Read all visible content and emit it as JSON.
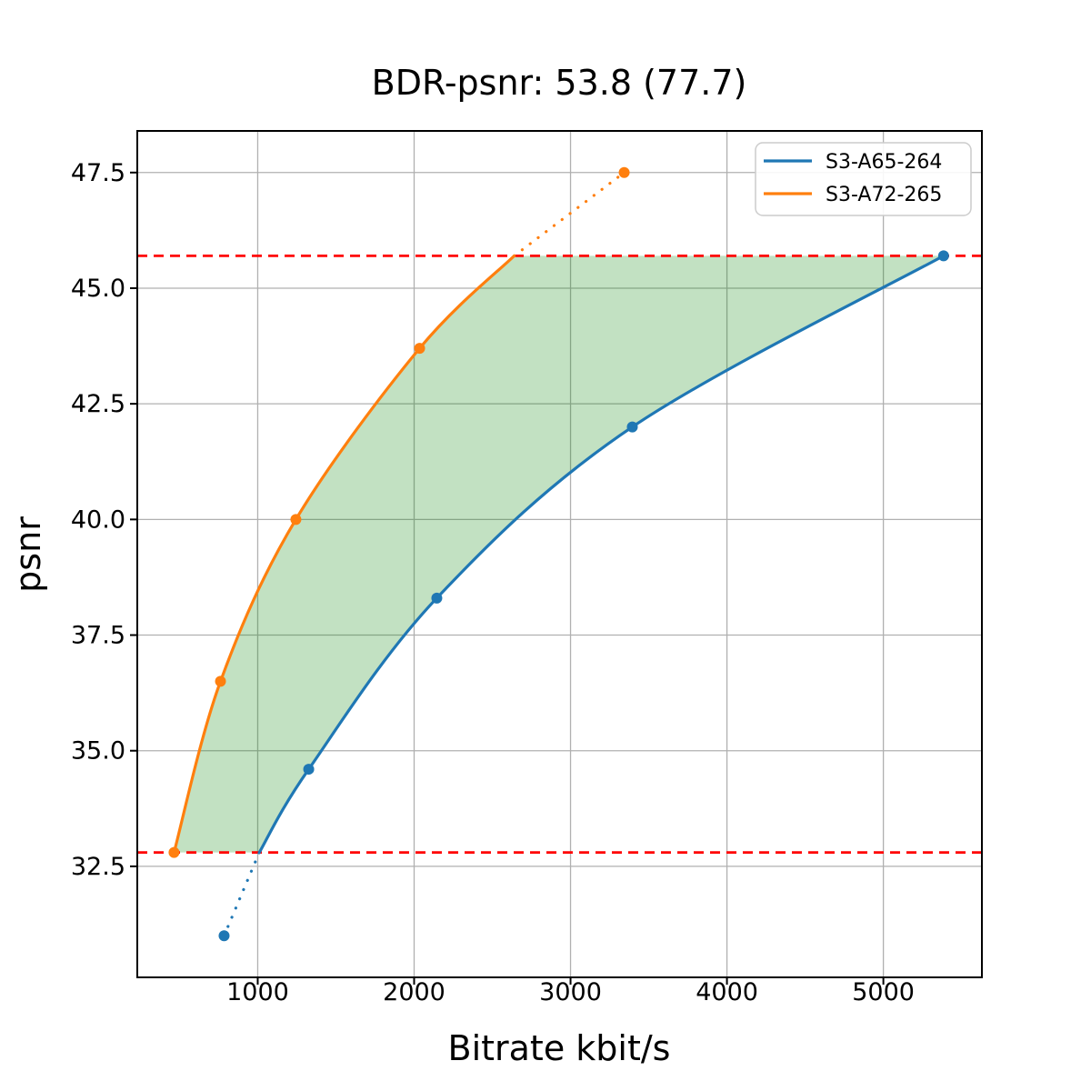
{
  "chart_data": {
    "type": "line",
    "title": "BDR-psnr: 53.8 (77.7)",
    "xlabel": "Bitrate kbit/s",
    "ylabel": "psnr",
    "xlim": [
      230,
      5630
    ],
    "ylim": [
      30.1,
      48.4
    ],
    "grid": true,
    "grid_color": "#b0b0b0",
    "x_ticks": [
      1000,
      2000,
      3000,
      4000,
      5000
    ],
    "x_tick_labels": [
      "1000",
      "2000",
      "3000",
      "4000",
      "5000"
    ],
    "y_ticks": [
      32.5,
      35.0,
      37.5,
      40.0,
      42.5,
      45.0,
      47.5
    ],
    "y_tick_labels": [
      "32.5",
      "35.0",
      "37.5",
      "40.0",
      "42.5",
      "45.0",
      "47.5"
    ],
    "legend_position": "upper right",
    "series": [
      {
        "name": "S3-A65-264",
        "color": "#1f77b4",
        "points": [
          [
            785,
            31.0
          ],
          [
            1326,
            34.6
          ],
          [
            2145,
            38.3
          ],
          [
            3395,
            42.0
          ],
          [
            5385,
            45.7
          ]
        ],
        "solid_points": [
          [
            1010,
            32.8
          ],
          [
            1326,
            34.6
          ],
          [
            2145,
            38.3
          ],
          [
            3395,
            42.0
          ],
          [
            5385,
            45.7
          ]
        ],
        "dotted_points": [
          [
            785,
            31.0
          ],
          [
            1010,
            32.8
          ]
        ]
      },
      {
        "name": "S3-A72-265",
        "color": "#ff7f0e",
        "points": [
          [
            465,
            32.8
          ],
          [
            762,
            36.5
          ],
          [
            1244,
            40.0
          ],
          [
            2035,
            43.7
          ],
          [
            3343,
            47.5
          ]
        ],
        "solid_points": [
          [
            465,
            32.8
          ],
          [
            762,
            36.5
          ],
          [
            1244,
            40.0
          ],
          [
            2035,
            43.7
          ],
          [
            2640,
            45.7
          ]
        ],
        "dotted_points": [
          [
            2640,
            45.7
          ],
          [
            3343,
            47.5
          ]
        ]
      }
    ],
    "reference_lines": {
      "color": "#ff0000",
      "style": "dashed",
      "psnr_values": [
        45.7,
        32.8
      ]
    },
    "shaded_region": {
      "color": "#008000",
      "opacity": 0.24,
      "psnr_range": [
        32.8,
        45.7
      ]
    }
  }
}
